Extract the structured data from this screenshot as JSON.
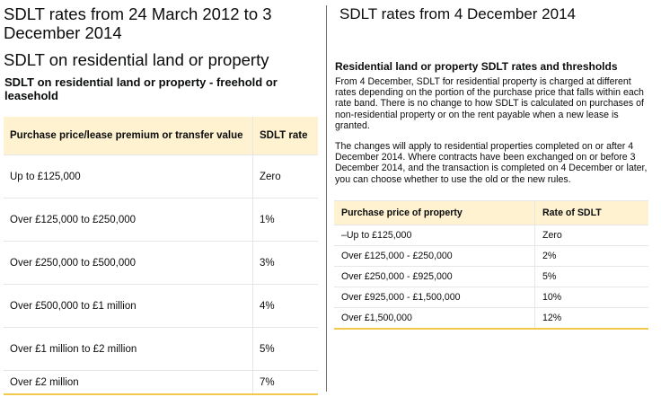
{
  "left": {
    "title": "SDLT rates from 24 March 2012 to 3 December 2014",
    "subtitle": "SDLT on residential land or property",
    "caption": "SDLT on residential land or property - freehold or leasehold",
    "table": {
      "headers": [
        "Purchase price/lease premium or transfer value",
        "SDLT rate"
      ],
      "rows": [
        [
          "Up to £125,000",
          "Zero"
        ],
        [
          "Over £125,000 to £250,000",
          "1%"
        ],
        [
          "Over £250,000 to £500,000",
          "3%"
        ],
        [
          "Over £500,000 to £1 million",
          "4%"
        ],
        [
          "Over £1 million to £2 million",
          "5%"
        ],
        [
          "Over £2 million",
          "7%"
        ]
      ]
    }
  },
  "right": {
    "title": "SDLT rates from 4 December 2014",
    "subtitle": "Residential land or property SDLT rates and thresholds",
    "paragraph1": "From 4 December, SDLT for residential property is charged at different rates depending on the portion of the purchase price that falls within each rate band. There is no change to how SDLT is calculated on purchases of non-residential property or on the rent payable when a new lease is granted.",
    "paragraph2": "The changes will apply to residential properties completed on or after 4 December 2014. Where contracts have been exchanged on or before 3 December 2014, and the transaction is completed on 4 December or later, you can choose whether to use the old or the new rules.",
    "table": {
      "headers": [
        "Purchase price of property",
        "Rate of SDLT"
      ],
      "rows": [
        [
          "–Up to £125,000",
          "Zero"
        ],
        [
          "Over £125,000 - £250,000",
          "2%"
        ],
        [
          "Over £250,000 - £925,000",
          "5%"
        ],
        [
          "Over £925,000 - £1,500,000",
          "10%"
        ],
        [
          "Over £1,500,000",
          "12%"
        ]
      ]
    }
  },
  "colors": {
    "header_bg": "#fff2d1",
    "accent_border": "#f2c94c",
    "grid": "#e6e6e6",
    "text": "#0b0c0c"
  }
}
